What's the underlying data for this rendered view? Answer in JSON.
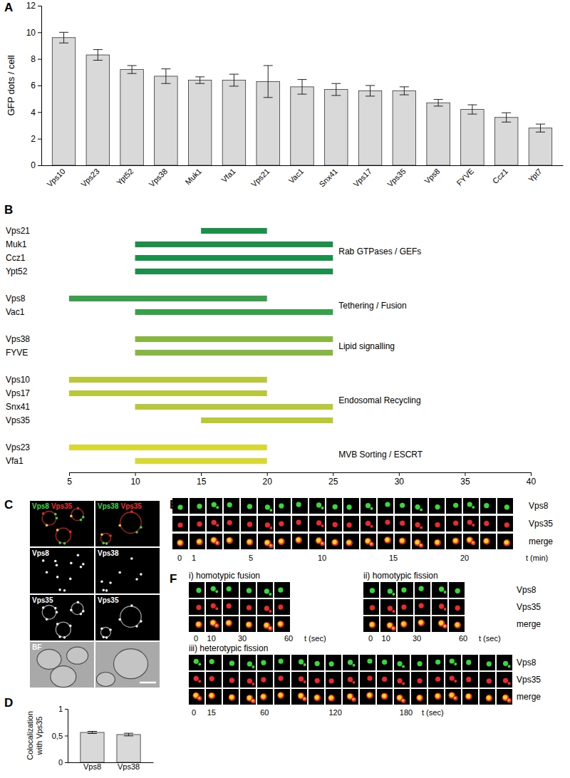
{
  "panel_labels": [
    "A",
    "B",
    "C",
    "D",
    "E",
    "F"
  ],
  "chart_data": [
    {
      "type": "bar",
      "ylabel": "GFP dots / cell",
      "categories": [
        "Vps10",
        "Vps23",
        "Ypt52",
        "Vps38",
        "Muk1",
        "Vfa1",
        "Vps21",
        "Vac1",
        "Snx41",
        "Vps17",
        "Vps35",
        "Vps8",
        "FYVE",
        "Ccz1",
        "Ypt7"
      ],
      "values": [
        9.6,
        8.3,
        7.2,
        6.7,
        6.4,
        6.4,
        6.3,
        5.9,
        5.7,
        5.6,
        5.6,
        4.7,
        4.2,
        3.6,
        2.8
      ],
      "errors": [
        0.4,
        0.4,
        0.3,
        0.55,
        0.25,
        0.45,
        1.2,
        0.55,
        0.45,
        0.4,
        0.3,
        0.25,
        0.35,
        0.35,
        0.3
      ],
      "color": "#d9d9d9",
      "ylim": [
        0,
        12
      ],
      "yticks": [
        0,
        2,
        4,
        6,
        8,
        10,
        12
      ]
    },
    {
      "type": "range",
      "orientation": "horizontal",
      "xlim": [
        5,
        40
      ],
      "xticks": [
        5,
        10,
        15,
        20,
        25,
        30,
        35,
        40
      ],
      "series": [
        {
          "name": "Rab GTPases / GEFs",
          "color": "#1a9048",
          "categories": [
            "Vps21",
            "Muk1",
            "Ccz1",
            "Ypt52"
          ],
          "starts": [
            15,
            10,
            10,
            10
          ],
          "ends": [
            20,
            25,
            25,
            25
          ]
        },
        {
          "name": "Tethering / Fusion",
          "color": "#38a048",
          "categories": [
            "Vps8",
            "Vac1"
          ],
          "starts": [
            5,
            10
          ],
          "ends": [
            20,
            25
          ]
        },
        {
          "name": "Lipid signalling",
          "color": "#86b840",
          "categories": [
            "Vps38",
            "FYVE"
          ],
          "starts": [
            10,
            10
          ],
          "ends": [
            25,
            25
          ]
        },
        {
          "name": "Endosomal Recycling",
          "color": "#b8c838",
          "categories": [
            "Vps10",
            "Vps17",
            "Snx41",
            "Vps35"
          ],
          "starts": [
            5,
            5,
            10,
            15
          ],
          "ends": [
            20,
            20,
            25,
            25
          ]
        },
        {
          "name": "MVB Sorting / ESCRT",
          "color": "#d8d830",
          "categories": [
            "Vps23",
            "Vfa1"
          ],
          "starts": [
            5,
            10
          ],
          "ends": [
            20,
            20
          ]
        }
      ]
    },
    {
      "type": "bar",
      "ylabel": [
        "Colocalization",
        "with Vps35"
      ],
      "categories": [
        "Vps8",
        "Vps38"
      ],
      "values": [
        0.56,
        0.52
      ],
      "errors": [
        0.02,
        0.025
      ],
      "color": "#d9d9d9",
      "ylim": [
        0,
        1
      ],
      "yticks": [
        0,
        {
          "value": 0.5,
          "label": "0,5"
        },
        1
      ]
    }
  ],
  "micrographs": {
    "C": {
      "merge_labels": [
        [
          "Vps8",
          "Vps35"
        ],
        [
          "Vps38",
          "Vps35"
        ]
      ],
      "rows": [
        [
          "Vps8",
          "Vps38"
        ],
        [
          "Vps35",
          "Vps35"
        ],
        [
          "BF",
          null
        ]
      ]
    },
    "E": {
      "channels": [
        "Vps8",
        "Vps35",
        "merge"
      ],
      "time_ticks": [
        0,
        1,
        5,
        10,
        15,
        20
      ],
      "time_label": "t (min)"
    },
    "F": [
      {
        "title": "i) homotypic fusion",
        "time_ticks": [
          0,
          10,
          30,
          60
        ],
        "time_label": "t (sec)"
      },
      {
        "title": "ii) homotypic fission",
        "channels": [
          "Vps8",
          "Vps35",
          "merge"
        ],
        "time_ticks": [
          0,
          10,
          30,
          60
        ],
        "time_label": "t (sec)"
      },
      {
        "title": "iii) heterotypic fission",
        "channels": [
          "Vps8",
          "Vps35",
          "merge"
        ],
        "time_ticks": [
          0,
          15,
          60,
          120,
          180
        ],
        "time_label": "t (sec)"
      }
    ]
  }
}
